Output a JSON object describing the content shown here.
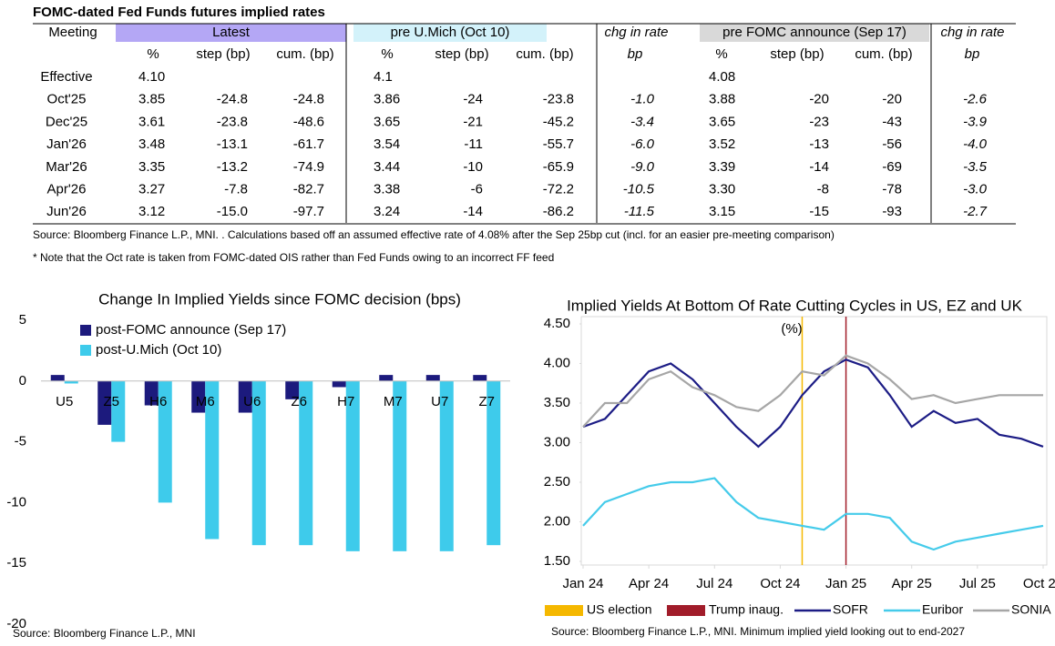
{
  "table": {
    "title": "FOMC-dated Fed Funds futures implied rates",
    "headers": [
      "Meeting",
      "Latest",
      "pre U.Mich (Oct 10)",
      "chg in rate",
      "pre FOMC announce (Sep 17)",
      "chg in rate"
    ],
    "subheaders": [
      "%",
      "step (bp)",
      "cum. (bp)",
      "%",
      "step (bp)",
      "cum. (bp)",
      "bp",
      "%",
      "step (bp)",
      "cum. (bp)",
      "bp"
    ],
    "rows": [
      [
        "Effective",
        "4.10",
        null,
        null,
        "4.1",
        null,
        null,
        null,
        "4.08",
        null,
        null,
        null
      ],
      [
        "Oct'25",
        "3.85",
        "-24.8",
        "-24.8",
        "3.86",
        "-24",
        "-23.8",
        "-1.0",
        "3.88",
        "-20",
        "-20",
        "-2.6"
      ],
      [
        "Dec'25",
        "3.61",
        "-23.8",
        "-48.6",
        "3.65",
        "-21",
        "-45.2",
        "-3.4",
        "3.65",
        "-23",
        "-43",
        "-3.9"
      ],
      [
        "Jan'26",
        "3.48",
        "-13.1",
        "-61.7",
        "3.54",
        "-11",
        "-55.7",
        "-6.0",
        "3.52",
        "-13",
        "-56",
        "-4.0"
      ],
      [
        "Mar'26",
        "3.35",
        "-13.2",
        "-74.9",
        "3.44",
        "-10",
        "-65.9",
        "-9.0",
        "3.39",
        "-14",
        "-69",
        "-3.5"
      ],
      [
        "Apr'26",
        "3.27",
        "-7.8",
        "-82.7",
        "3.38",
        "-6",
        "-72.2",
        "-10.5",
        "3.30",
        "-8",
        "-78",
        "-3.0"
      ],
      [
        "Jun'26",
        "3.12",
        "-15.0",
        "-97.7",
        "3.24",
        "-14",
        "-86.2",
        "-11.5",
        "3.15",
        "-15",
        "-93",
        "-2.7"
      ]
    ],
    "source": "Source: Bloomberg Finance L.P., MNI. . Calculations based off an assumed effective rate of 4.08% after the Sep 25bp cut (incl. for an easier pre-meeting comparison)",
    "note": "* Note that the Oct rate is taken from FOMC-dated OIS rather than Fed Funds owing to an incorrect FF feed"
  },
  "chart_data": [
    {
      "type": "bar",
      "title": "Change In Implied Yields since FOMC decision (bps)",
      "categories": [
        "U5",
        "Z5",
        "H6",
        "M6",
        "U6",
        "Z6",
        "H7",
        "M7",
        "U7",
        "Z7"
      ],
      "series": [
        {
          "name": "post-FOMC announce (Sep 17)",
          "color": "#1c1a7d",
          "values": [
            0.5,
            -3.6,
            -2.0,
            -2.6,
            -2.6,
            -1.5,
            -0.5,
            0.5,
            0.5,
            0.5
          ]
        },
        {
          "name": "post-U.Mich (Oct 10)",
          "color": "#3ecbeb",
          "values": [
            -0.2,
            -5.0,
            -10.0,
            -13.0,
            -13.5,
            -13.5,
            -14.0,
            -14.0,
            -14.0,
            -13.5
          ]
        }
      ],
      "ylim": [
        -20,
        5
      ],
      "yticks": [
        -20,
        -15,
        -10,
        -5,
        0,
        5
      ],
      "legend": "upper left",
      "source": "Source: Bloomberg Finance L.P., MNI"
    },
    {
      "type": "line",
      "title": "Implied Yields At Bottom Of Rate Cutting Cycles in US, EZ and UK",
      "ylabel": "(%)",
      "x": [
        "2024-01",
        "2024-02",
        "2024-03",
        "2024-04",
        "2024-05",
        "2024-06",
        "2024-07",
        "2024-08",
        "2024-09",
        "2024-10",
        "2024-11",
        "2024-12",
        "2025-01",
        "2025-02",
        "2025-03",
        "2025-04",
        "2025-05",
        "2025-06",
        "2025-07",
        "2025-08",
        "2025-09",
        "2025-10"
      ],
      "xlim": [
        "2024-01",
        "2025-10"
      ],
      "xticks": [
        {
          "value": "2024-01",
          "label": "Jan 24"
        },
        {
          "value": "2024-04",
          "label": "Apr 24"
        },
        {
          "value": "2024-07",
          "label": "Jul 24"
        },
        {
          "value": "2024-10",
          "label": "Oct 24"
        },
        {
          "value": "2025-01",
          "label": "Jan 25"
        },
        {
          "value": "2025-04",
          "label": "Apr 25"
        },
        {
          "value": "2025-07",
          "label": "Jul 25"
        },
        {
          "value": "2025-10",
          "label": "Oct 25"
        }
      ],
      "events": [
        {
          "name": "US election",
          "x": "2024-11",
          "color": "#f5b800"
        },
        {
          "name": "Trump inaug.",
          "x": "2025-01",
          "color": "#a11c2a"
        }
      ],
      "series": [
        {
          "name": "SOFR",
          "color": "#1c1c85",
          "values": [
            3.2,
            3.3,
            3.6,
            3.9,
            4.0,
            3.8,
            3.5,
            3.2,
            2.95,
            3.2,
            3.6,
            3.9,
            4.05,
            3.95,
            3.6,
            3.2,
            3.4,
            3.25,
            3.3,
            3.1,
            3.05,
            2.95
          ]
        },
        {
          "name": "Euribor",
          "color": "#45cbea",
          "values": [
            1.95,
            2.25,
            2.35,
            2.45,
            2.5,
            2.5,
            2.55,
            2.25,
            2.05,
            2.0,
            1.95,
            1.9,
            2.1,
            2.1,
            2.05,
            1.75,
            1.65,
            1.75,
            1.8,
            1.85,
            1.9,
            1.95
          ]
        },
        {
          "name": "SONIA",
          "color": "#a6a6a6",
          "values": [
            3.2,
            3.5,
            3.5,
            3.8,
            3.9,
            3.7,
            3.6,
            3.45,
            3.4,
            3.6,
            3.9,
            3.85,
            4.1,
            4.0,
            3.8,
            3.55,
            3.6,
            3.5,
            3.55,
            3.6,
            3.6,
            3.6
          ]
        }
      ],
      "ylim": [
        1.5,
        4.5
      ],
      "yticks": [
        {
          "value": 1.5,
          "label": "1.50"
        },
        {
          "value": 2,
          "label": "2.00"
        },
        {
          "value": 2.5,
          "label": "2.50"
        },
        {
          "value": 3,
          "label": "3.00"
        },
        {
          "value": 3.5,
          "label": "3.50"
        },
        {
          "value": 4,
          "label": "4.00"
        },
        {
          "value": 4.5,
          "label": "4.50"
        }
      ],
      "legend": "bottom",
      "source": "Source: Bloomberg Finance L.P., MNI. Minimum implied yield looking out to end-2027"
    }
  ]
}
